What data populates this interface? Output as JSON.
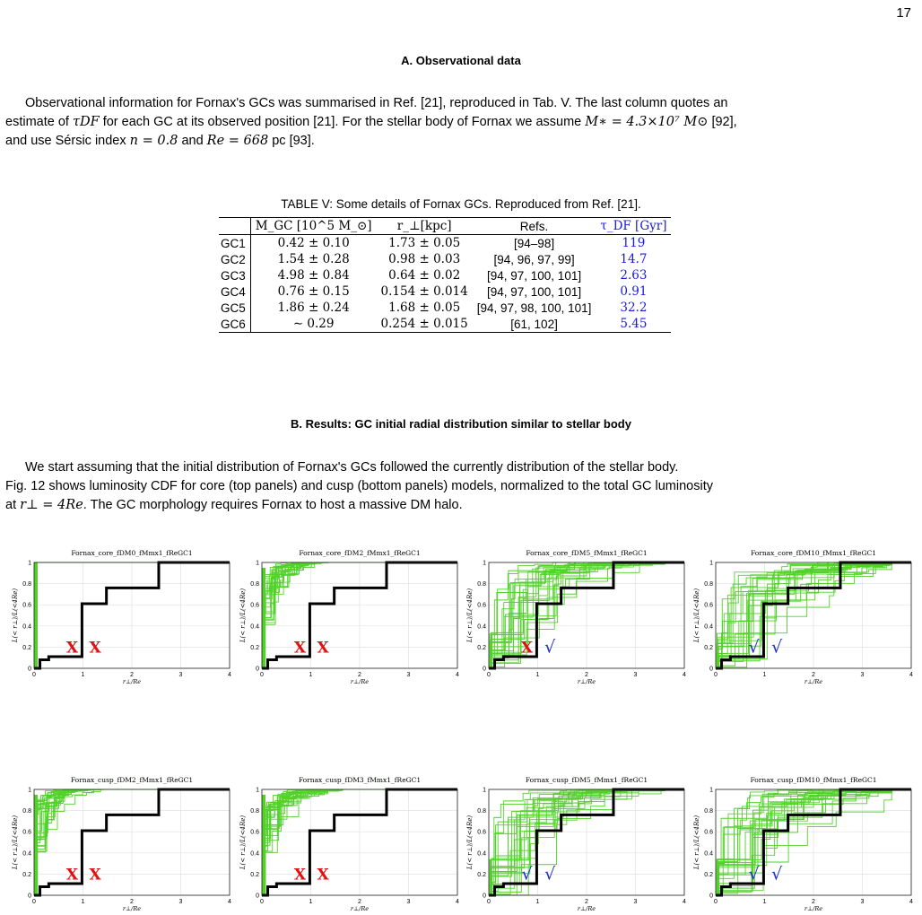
{
  "page_number": "17",
  "sectionA": {
    "heading": "A.   Observational data",
    "p1": "Observational information for Fornax's GCs was summarised in Ref. [21], reproduced in Tab. V. The last column quotes an",
    "p2a": "estimate of ",
    "p2b": " for each GC at its observed position [21]. For the stellar body of Fornax we assume ",
    "p2c": " [92],",
    "p3a": "and use Sérsic index ",
    "p3b": " and ",
    "p3c": " pc [93]."
  },
  "table": {
    "caption": "TABLE V: Some details of Fornax GCs. Reproduced from Ref. [21].",
    "headers": [
      "",
      "M_GC [10^5 M_⊙]",
      "r_⊥[kpc]",
      "Refs.",
      "τ_DF [Gyr]"
    ],
    "rows": [
      [
        "GC1",
        "0.42 ± 0.10",
        "1.73 ± 0.05",
        "[94–98]",
        "119"
      ],
      [
        "GC2",
        "1.54 ± 0.28",
        "0.98 ± 0.03",
        "[94, 96, 97, 99]",
        "14.7"
      ],
      [
        "GC3",
        "4.98 ± 0.84",
        "0.64 ± 0.02",
        "[94, 97, 100, 101]",
        "2.63"
      ],
      [
        "GC4",
        "0.76 ± 0.15",
        "0.154 ± 0.014",
        "[94, 97, 100, 101]",
        "0.91"
      ],
      [
        "GC5",
        "1.86 ± 0.24",
        "1.68 ± 0.05",
        "[94, 97, 98, 100, 101]",
        "32.2"
      ],
      [
        "GC6",
        "∼ 0.29",
        "0.254 ± 0.015",
        "[61, 102]",
        "5.45"
      ]
    ]
  },
  "sectionB": {
    "heading": "B.   Results: GC initial radial distribution similar to stellar body",
    "p1": "We start assuming that the initial distribution of Fornax's GCs followed the currently distribution of the stellar body.",
    "p2": "Fig. 12 shows luminosity CDF for core (top panels) and cusp (bottom panels) models, normalized to the total GC luminosity",
    "p3a": "at ",
    "p3b": ". The GC morphology requires Fornax to host a massive DM halo."
  },
  "math": {
    "tau": "τDF",
    "mstar": "M∗ = 4.3×10⁷ M⊙",
    "sersic": "n = 0.8",
    "re": "Re = 668",
    "rperp": "r⊥ = 4Re"
  },
  "chart_data": {
    "type": "line",
    "xlabel": "r⊥/Re",
    "ylabel": "L(< r⊥)/L(<4Re)",
    "xlim": [
      0,
      4
    ],
    "ylim": [
      0,
      1
    ],
    "xticks": [
      "0",
      "1",
      "2",
      "3",
      "4"
    ],
    "yticks": [
      "0",
      "0.2",
      "0.4",
      "0.6",
      "0.8",
      "1"
    ],
    "grid": true,
    "observed_cdf": {
      "x": [
        0,
        0.12,
        0.12,
        0.3,
        0.3,
        0.98,
        0.98,
        1.48,
        1.48,
        2.55,
        2.55,
        4
      ],
      "y": [
        0,
        0,
        0.08,
        0.08,
        0.11,
        0.11,
        0.61,
        0.61,
        0.76,
        0.76,
        1,
        1
      ]
    },
    "mark_colors": {
      "simulation": "#52d12a",
      "observed": "#000000",
      "cross": "#e11111",
      "check": "#1f2fc8"
    },
    "panels": [
      {
        "title": "Fornax_core_fDM0_fMmx1_fReGC1",
        "marks": [
          "X",
          "X"
        ]
      },
      {
        "title": "Fornax_core_fDM2_fMmx1_fReGC1",
        "marks": [
          "X",
          "X"
        ]
      },
      {
        "title": "Fornax_core_fDM5_fMmx1_fReGC1",
        "marks": [
          "X",
          "√"
        ]
      },
      {
        "title": "Fornax_core_fDM10_fMmx1_fReGC1",
        "marks": [
          "√",
          "√"
        ]
      },
      {
        "title": "Fornax_cusp_fDM2_fMmx1_fReGC1",
        "marks": [
          "X",
          "X"
        ]
      },
      {
        "title": "Fornax_cusp_fDM3_fMmx1_fReGC1",
        "marks": [
          "X",
          "X"
        ]
      },
      {
        "title": "Fornax_cusp_fDM5_fMmx1_fReGC1",
        "marks": [
          "√",
          "√"
        ]
      },
      {
        "title": "Fornax_cusp_fDM10_fMmx1_fReGC1",
        "marks": [
          "√",
          "√"
        ]
      }
    ]
  }
}
